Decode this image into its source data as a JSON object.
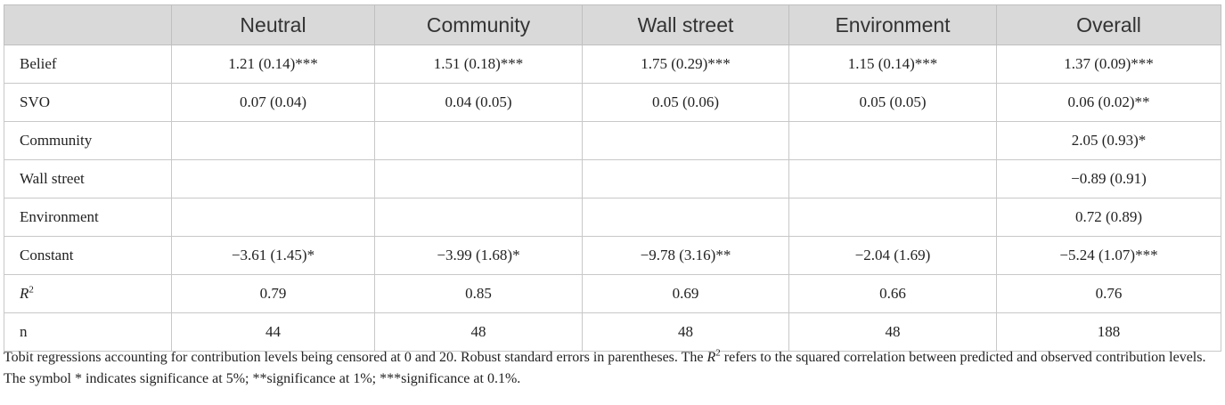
{
  "table": {
    "headers": [
      "",
      "Neutral",
      "Community",
      "Wall street",
      "Environment",
      "Overall"
    ],
    "rows": [
      {
        "label": "Belief",
        "cells": [
          "1.21 (0.14)***",
          "1.51 (0.18)***",
          "1.75 (0.29)***",
          "1.15 (0.14)***",
          "1.37 (0.09)***"
        ]
      },
      {
        "label": "SVO",
        "cells": [
          "0.07 (0.04)",
          "0.04 (0.05)",
          "0.05 (0.06)",
          "0.05 (0.05)",
          "0.06 (0.02)**"
        ]
      },
      {
        "label": "Community",
        "cells": [
          "",
          "",
          "",
          "",
          "2.05 (0.93)*"
        ]
      },
      {
        "label": "Wall street",
        "cells": [
          "",
          "",
          "",
          "",
          "−0.89 (0.91)"
        ]
      },
      {
        "label": "Environment",
        "cells": [
          "",
          "",
          "",
          "",
          "0.72 (0.89)"
        ]
      },
      {
        "label": "Constant",
        "cells": [
          "−3.61 (1.45)*",
          "−3.99 (1.68)*",
          "−9.78 (3.16)**",
          "−2.04 (1.69)",
          "−5.24 (1.07)***"
        ]
      },
      {
        "label_italic": "R",
        "label_sup": "2",
        "cells": [
          "0.79",
          "0.85",
          "0.69",
          "0.66",
          "0.76"
        ]
      },
      {
        "label": "n",
        "cells": [
          "44",
          "48",
          "48",
          "48",
          "188"
        ]
      }
    ]
  },
  "note": {
    "part1": "Tobit regressions accounting for contribution levels being censored at 0 and 20. Robust standard errors in parentheses. The ",
    "r_italic": "R",
    "r_sup": "2",
    "part2": " refers to the squared correlation between predicted and observed contribution levels. The symbol * indicates significance at 5%; **significance at 1%; ***significance at 0.1%."
  }
}
